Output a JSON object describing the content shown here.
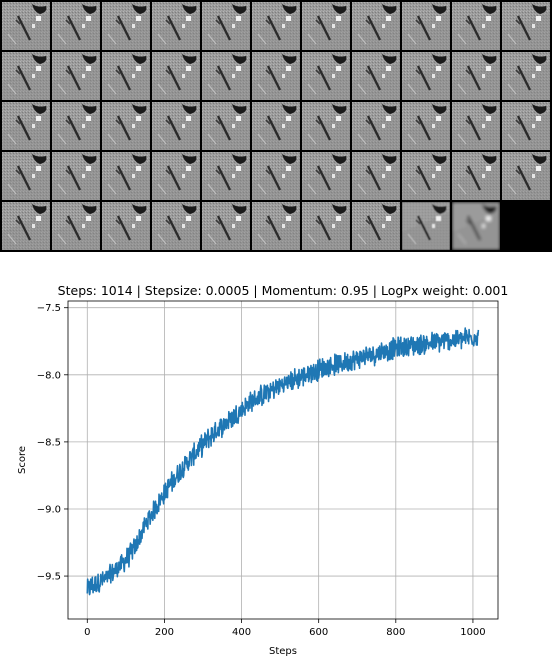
{
  "image_grid": {
    "rows": 5,
    "cols": 11,
    "image_count": 54,
    "empty_tile_color": "#000000"
  },
  "chart_data": {
    "type": "line",
    "title": "Steps: 1014 | Stepsize: 0.0005 | Momentum: 0.95 | LogPx weight: 0.001",
    "xlabel": "Steps",
    "ylabel": "Score",
    "xlim": [
      -50,
      1065
    ],
    "ylim": [
      -9.82,
      -7.45
    ],
    "xticks": [
      0,
      200,
      400,
      600,
      800,
      1000
    ],
    "yticks": [
      -9.5,
      -9.0,
      -8.5,
      -8.0,
      -7.5
    ],
    "xtick_labels": [
      "0",
      "200",
      "400",
      "600",
      "800",
      "1000"
    ],
    "ytick_labels": [
      "−9.5",
      "−9.0",
      "−8.5",
      "−8.0",
      "−7.5"
    ],
    "grid": true,
    "line_color": "#1f77b4",
    "series": [
      {
        "x": [
          0,
          25,
          50,
          75,
          100,
          125,
          150,
          175,
          200,
          225,
          250,
          275,
          300,
          325,
          350,
          375,
          400,
          425,
          450,
          475,
          500,
          525,
          550,
          575,
          600,
          625,
          650,
          675,
          700,
          725,
          750,
          775,
          800,
          825,
          850,
          875,
          900,
          925,
          950,
          975,
          1000,
          1014
        ],
        "values": [
          -9.6,
          -9.55,
          -9.52,
          -9.45,
          -9.38,
          -9.28,
          -9.12,
          -9.0,
          -8.88,
          -8.78,
          -8.68,
          -8.6,
          -8.52,
          -8.44,
          -8.38,
          -8.32,
          -8.26,
          -8.2,
          -8.16,
          -8.12,
          -8.08,
          -8.05,
          -8.02,
          -7.99,
          -7.96,
          -7.94,
          -7.92,
          -7.9,
          -7.88,
          -7.86,
          -7.84,
          -7.82,
          -7.8,
          -7.79,
          -7.78,
          -7.77,
          -7.76,
          -7.75,
          -7.74,
          -7.73,
          -7.72,
          -7.7
        ]
      }
    ]
  }
}
